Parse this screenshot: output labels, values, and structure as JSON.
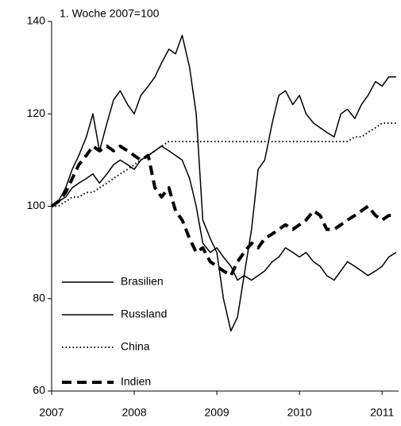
{
  "chart_data": {
    "type": "line",
    "annotation": "1. Woche 2007=100",
    "x": [
      2007,
      2007.08,
      2007.17,
      2007.25,
      2007.33,
      2007.42,
      2007.5,
      2007.58,
      2007.67,
      2007.75,
      2007.83,
      2007.92,
      2008,
      2008.08,
      2008.17,
      2008.25,
      2008.33,
      2008.42,
      2008.5,
      2008.58,
      2008.67,
      2008.75,
      2008.83,
      2008.92,
      2009,
      2009.08,
      2009.17,
      2009.25,
      2009.33,
      2009.42,
      2009.5,
      2009.58,
      2009.67,
      2009.75,
      2009.83,
      2009.92,
      2010,
      2010.08,
      2010.17,
      2010.25,
      2010.33,
      2010.42,
      2010.5,
      2010.58,
      2010.67,
      2010.75,
      2010.83,
      2010.92,
      2011,
      2011.08,
      2011.17
    ],
    "series": [
      {
        "name": "Brasilien",
        "color": "#000000",
        "style": "solid",
        "values": [
          100,
          101,
          104,
          108,
          111,
          115,
          120,
          112,
          118,
          123,
          125,
          122,
          120,
          124,
          126,
          128,
          131,
          134,
          133,
          137,
          130,
          120,
          97,
          93,
          90,
          80,
          73,
          76,
          85,
          95,
          108,
          110,
          118,
          124,
          125,
          122,
          124,
          120,
          118,
          117,
          116,
          115,
          120,
          121,
          119,
          122,
          124,
          127,
          126,
          128,
          128
        ]
      },
      {
        "name": "Russland",
        "color": "#000000",
        "style": "solid",
        "values": [
          100,
          101,
          102,
          104,
          105,
          106,
          107,
          105,
          107,
          109,
          110,
          109,
          108,
          110,
          111,
          112,
          113,
          112,
          111,
          110,
          106,
          100,
          92,
          90,
          91,
          89,
          87,
          84,
          85,
          84,
          85,
          86,
          88,
          89,
          91,
          90,
          89,
          90,
          88,
          87,
          85,
          84,
          86,
          88,
          87,
          86,
          85,
          86,
          87,
          89,
          90
        ]
      },
      {
        "name": "China",
        "color": "#000000",
        "style": "dotted",
        "values": [
          100,
          100,
          101,
          102,
          102,
          103,
          103,
          104,
          105,
          106,
          107,
          108,
          109,
          110,
          111,
          112,
          113,
          114,
          114,
          114,
          114,
          114,
          114,
          114,
          114,
          114,
          114,
          114,
          114,
          114,
          114,
          114,
          114,
          114,
          114,
          114,
          114,
          114,
          114,
          114,
          114,
          114,
          114,
          114,
          115,
          115,
          116,
          117,
          118,
          118,
          118
        ]
      },
      {
        "name": "Indien",
        "color": "#000000",
        "style": "dashed",
        "values": [
          100,
          101,
          103,
          106,
          109,
          111,
          113,
          112,
          113,
          112,
          113,
          112,
          111,
          110,
          111,
          104,
          102,
          104,
          99,
          97,
          93,
          90,
          91,
          88,
          87,
          86,
          85,
          88,
          90,
          92,
          91,
          93,
          94,
          95,
          96,
          95,
          96,
          97,
          99,
          98,
          95,
          95,
          96,
          97,
          98,
          99,
          100,
          98,
          97,
          98,
          98
        ]
      }
    ],
    "xlim": [
      2007,
      2011.2
    ],
    "xticks": [
      2007,
      2008,
      2009,
      2010,
      2011
    ],
    "ylim": [
      60,
      140
    ],
    "yticks": [
      60,
      80,
      100,
      120,
      140
    ],
    "grid": false
  }
}
